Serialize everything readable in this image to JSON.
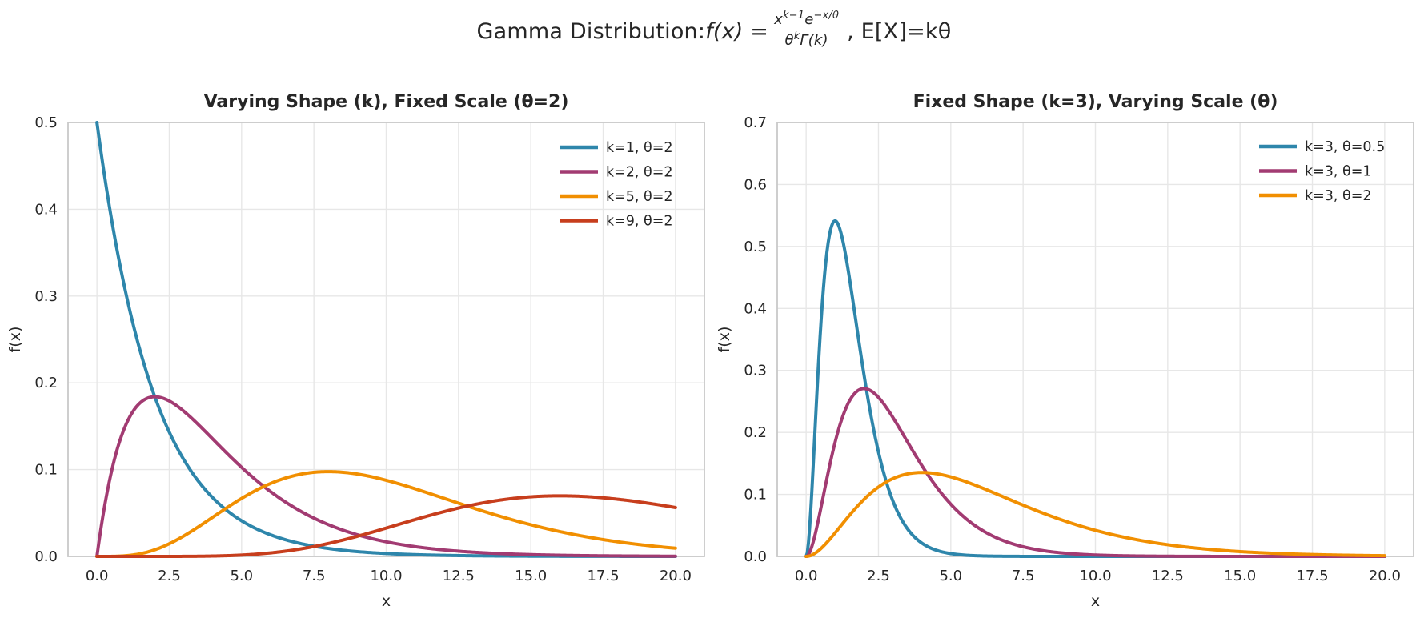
{
  "figure": {
    "title_prefix": "Gamma Distribution: ",
    "fx": "f(x) = ",
    "frac": {
      "num_x": "x",
      "num_xsup": "k−1",
      "num_e": "e",
      "num_esup": "−x/θ",
      "den_theta": "θ",
      "den_thetasup": "k",
      "den_gamma": "Γ(k)"
    },
    "title_suffix": ",  E[X]=kθ"
  },
  "style": {
    "background": "#ffffff",
    "grid_color": "#e7e7e7",
    "spine_color": "#c9c9c9",
    "text_color": "#262626",
    "line_width": 4
  },
  "chart_data": [
    {
      "type": "line",
      "title": "Varying Shape (k), Fixed Scale (θ=2)",
      "xlabel": "x",
      "ylabel": "f(x)",
      "xlim": [
        -1,
        21
      ],
      "ylim": [
        0,
        0.5
      ],
      "x_ticks": [
        0,
        2.5,
        5,
        7.5,
        10,
        12.5,
        15,
        17.5,
        20
      ],
      "x_tick_labels": [
        "0.0",
        "2.5",
        "5.0",
        "7.5",
        "10.0",
        "12.5",
        "15.0",
        "17.5",
        "20.0"
      ],
      "y_ticks": [
        0,
        0.1,
        0.2,
        0.3,
        0.4,
        0.5
      ],
      "y_tick_labels": [
        "0.0",
        "0.1",
        "0.2",
        "0.3",
        "0.4",
        "0.5"
      ],
      "grid": true,
      "legend_position": "upper right",
      "sample_x": [
        0,
        1,
        2,
        3,
        4,
        5,
        6,
        7,
        8,
        9,
        10,
        11,
        12,
        13,
        14,
        15,
        16,
        17,
        18,
        19,
        20
      ],
      "series": [
        {
          "name": "k=1, θ=2",
          "color": "#2E86AB",
          "k": 1,
          "theta": 2,
          "sample_y": [
            0.5,
            0.30327,
            0.18394,
            0.11157,
            0.06767,
            0.04104,
            0.02489,
            0.0151,
            0.00916,
            0.00555,
            0.00337,
            0.00204,
            0.00124,
            0.00075,
            0.00046,
            0.00028,
            0.00017,
            0.0001,
            6e-05,
            4e-05,
            2e-05
          ]
        },
        {
          "name": "k=2, θ=2",
          "color": "#A23B72",
          "k": 2,
          "theta": 2,
          "sample_y": [
            0,
            0.15163,
            0.18394,
            0.16735,
            0.13534,
            0.1026,
            0.07468,
            0.05285,
            0.03663,
            0.02499,
            0.01684,
            0.01123,
            0.00743,
            0.00488,
            0.00319,
            0.00208,
            0.00134,
            0.00087,
            0.00056,
            0.00036,
            0.00023
          ]
        },
        {
          "name": "k=5, θ=2",
          "color": "#F18F01",
          "k": 5,
          "theta": 2,
          "sample_y": [
            0,
            0.00079,
            0.00766,
            0.02353,
            0.04511,
            0.06677,
            0.08404,
            0.09442,
            0.09768,
            0.09491,
            0.08774,
            0.07791,
            0.06692,
            0.0559,
            0.04562,
            0.03645,
            0.02862,
            0.02212,
            0.01687,
            0.01271,
            0.00946
          ]
        },
        {
          "name": "k=9, θ=2",
          "color": "#C73E1D",
          "k": 9,
          "theta": 2,
          "sample_y": [
            0,
            0,
            0,
            7e-05,
            0.00043,
            0.00155,
            0.00405,
            0.00843,
            0.01488,
            0.02316,
            0.03264,
            0.04244,
            0.05163,
            0.05941,
            0.06519,
            0.06866,
            0.0698,
            0.06876,
            0.06588,
            0.06158,
            0.0563
          ]
        }
      ]
    },
    {
      "type": "line",
      "title": "Fixed Shape (k=3), Varying Scale (θ)",
      "xlabel": "x",
      "ylabel": "f(x)",
      "xlim": [
        -1,
        21
      ],
      "ylim": [
        0,
        0.7
      ],
      "x_ticks": [
        0,
        2.5,
        5,
        7.5,
        10,
        12.5,
        15,
        17.5,
        20
      ],
      "x_tick_labels": [
        "0.0",
        "2.5",
        "5.0",
        "7.5",
        "10.0",
        "12.5",
        "15.0",
        "17.5",
        "20.0"
      ],
      "y_ticks": [
        0,
        0.1,
        0.2,
        0.3,
        0.4,
        0.5,
        0.6,
        0.7
      ],
      "y_tick_labels": [
        "0.0",
        "0.1",
        "0.2",
        "0.3",
        "0.4",
        "0.5",
        "0.6",
        "0.7"
      ],
      "grid": true,
      "legend_position": "upper right",
      "sample_x": [
        0,
        1,
        2,
        3,
        4,
        5,
        6,
        7,
        8,
        9,
        10,
        11,
        12,
        13,
        14,
        15,
        16,
        17,
        18,
        19,
        20
      ],
      "series": [
        {
          "name": "k=3, θ=0.5",
          "color": "#2E86AB",
          "k": 3,
          "theta": 0.5,
          "sample_y": [
            0,
            0.54134,
            0.29305,
            0.08924,
            0.02147,
            0.00454,
            0.00088,
            0.00016,
            3e-05,
            1e-05,
            0,
            0,
            0,
            0,
            0,
            0,
            0,
            0,
            0,
            0,
            0
          ]
        },
        {
          "name": "k=3, θ=1",
          "color": "#A23B72",
          "k": 3,
          "theta": 1,
          "sample_y": [
            0,
            0.18394,
            0.27067,
            0.22404,
            0.14653,
            0.08422,
            0.04462,
            0.02234,
            0.01073,
            0.005,
            0.00227,
            0.00101,
            0.00044,
            0.00019,
            8e-05,
            3e-05,
            1e-05,
            1e-05,
            0,
            0,
            0
          ]
        },
        {
          "name": "k=3, θ=2",
          "color": "#F18F01",
          "k": 3,
          "theta": 2,
          "sample_y": [
            0,
            0.03791,
            0.09197,
            0.12551,
            0.13534,
            0.12826,
            0.11202,
            0.09248,
            0.07326,
            0.05624,
            0.04211,
            0.03091,
            0.02231,
            0.01588,
            0.01117,
            0.00778,
            0.00537,
            0.00368,
            0.0025,
            0.00169,
            0.00114
          ]
        }
      ]
    }
  ]
}
